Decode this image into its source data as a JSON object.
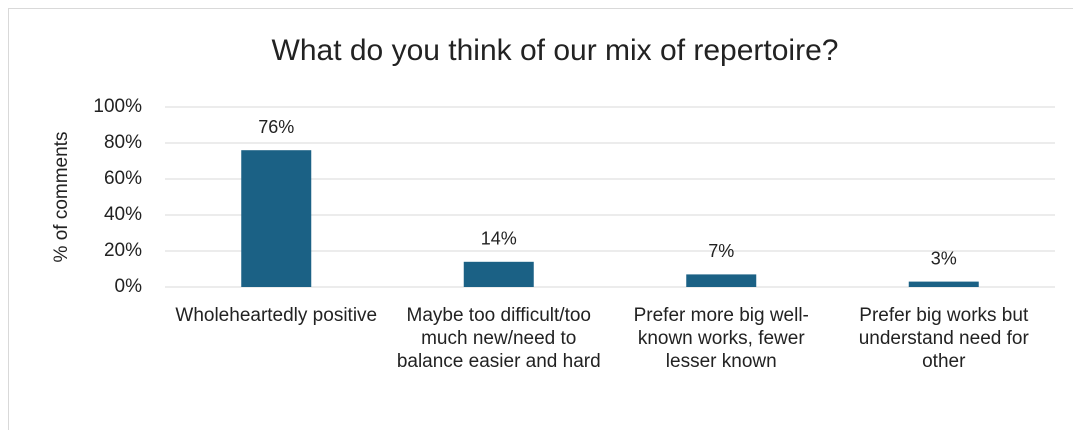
{
  "chart_data": {
    "type": "bar",
    "title": "What do you think of our mix of repertoire?",
    "y_label": "% of comments",
    "categories": [
      "Wholeheartedly positive",
      "Maybe too difficult/too much new/need to balance easier and hard",
      "Prefer more big well-known works, fewer lesser known",
      "Prefer big works but understand need for other"
    ],
    "values": [
      76,
      14,
      7,
      3
    ],
    "value_labels": [
      "76%",
      "14%",
      "7%",
      "3%"
    ],
    "color": "#1b6185",
    "ylim": [
      0,
      100
    ],
    "yticks": [
      {
        "value": 0,
        "label": "0%"
      },
      {
        "value": 20,
        "label": "20%"
      },
      {
        "value": 40,
        "label": "40%"
      },
      {
        "value": 60,
        "label": "60%"
      },
      {
        "value": 80,
        "label": "80%"
      },
      {
        "value": 100,
        "label": "100%"
      }
    ],
    "grid": true
  }
}
